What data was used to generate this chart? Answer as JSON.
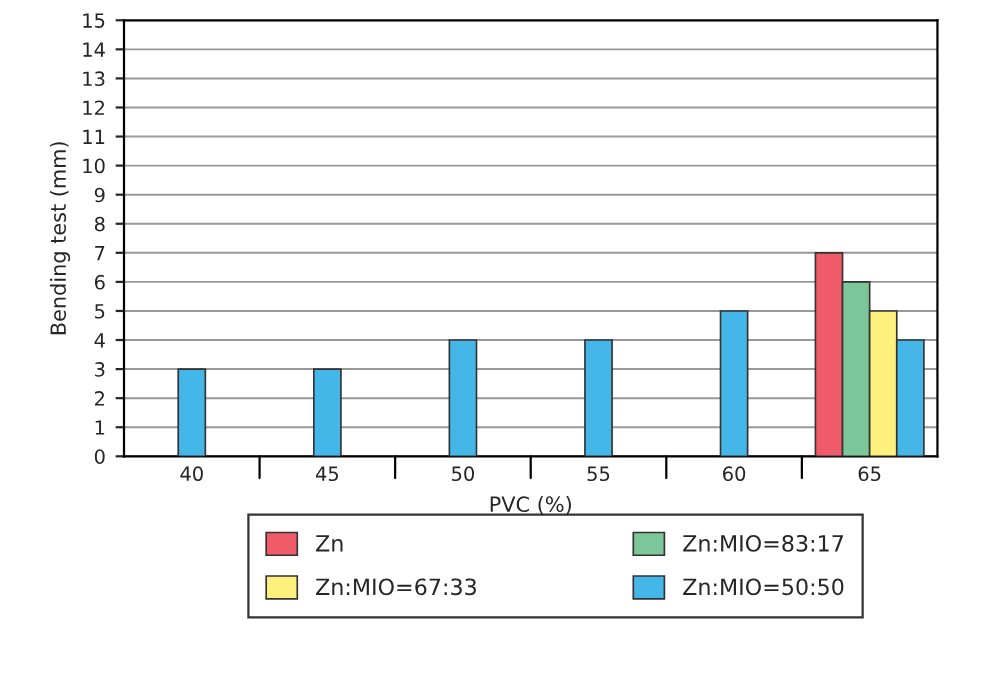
{
  "chart_data": {
    "type": "bar",
    "xlabel": "PVC (%)",
    "ylabel": "Bending test (mm)",
    "categories": [
      "40",
      "45",
      "50",
      "55",
      "60",
      "65"
    ],
    "series": [
      {
        "name": "Zn",
        "color": "#ef5b68",
        "values": [
          null,
          null,
          null,
          null,
          null,
          7
        ]
      },
      {
        "name": "Zn:MIO=83:17",
        "color": "#7cc79a",
        "values": [
          null,
          null,
          null,
          null,
          null,
          6
        ]
      },
      {
        "name": "Zn:MIO=67:33",
        "color": "#fdf07c",
        "values": [
          null,
          null,
          null,
          null,
          null,
          5
        ]
      },
      {
        "name": "Zn:MIO=50:50",
        "color": "#45b6e8",
        "values": [
          3,
          3,
          4,
          4,
          5,
          4
        ]
      }
    ],
    "ylim": [
      0,
      15
    ],
    "yticks": [
      0,
      1,
      2,
      3,
      4,
      5,
      6,
      7,
      8,
      9,
      10,
      11,
      12,
      13,
      14,
      15
    ],
    "grid": "y",
    "legend": "bottom"
  }
}
